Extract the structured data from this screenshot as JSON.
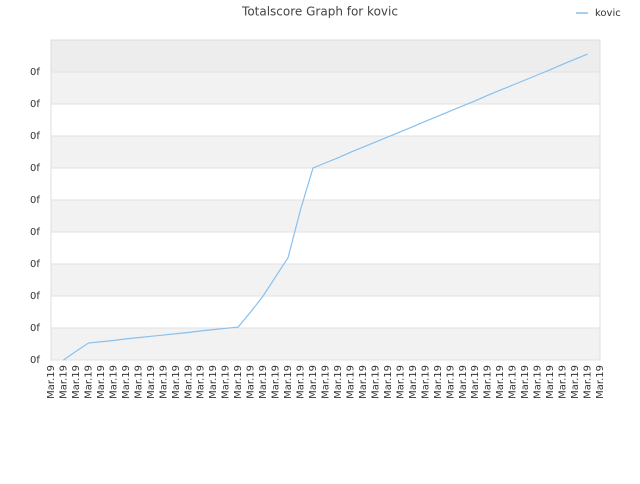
{
  "chart_data": {
    "type": "line",
    "title": "Totalscore Graph for kovic",
    "categories": [
      "Mar.19",
      "Mar.19",
      "Mar.19",
      "Mar.19",
      "Mar.19",
      "Mar.19",
      "Mar.19",
      "Mar.19",
      "Mar.19",
      "Mar.19",
      "Mar.19",
      "Mar.19",
      "Mar.19",
      "Mar.19",
      "Mar.19",
      "Mar.19",
      "Mar.19",
      "Mar.19",
      "Mar.19",
      "Mar.19",
      "Mar.19",
      "Mar.19",
      "Mar.19",
      "Mar.19",
      "Mar.19",
      "Mar.19",
      "Mar.19",
      "Mar.19",
      "Mar.19",
      "Mar.19",
      "Mar.19",
      "Mar.19",
      "Mar.19",
      "Mar.19",
      "Mar.19",
      "Mar.19",
      "Mar.19",
      "Mar.19",
      "Mar.19",
      "Mar.19",
      "Mar.19",
      "Mar.19",
      "Mar.19",
      "Mar.19",
      "Mar.19"
    ],
    "series": [
      {
        "name": "kovic",
        "color": "#88c0ee",
        "values": [
          null,
          0,
          0.27,
          0.53,
          0.57,
          0.61,
          0.66,
          0.7,
          0.74,
          0.78,
          0.82,
          0.86,
          0.91,
          0.95,
          0.99,
          1.03,
          1.5,
          2.0,
          2.6,
          3.2,
          4.7,
          6.0,
          6.16,
          6.32,
          6.49,
          6.65,
          6.81,
          6.97,
          7.13,
          7.29,
          7.46,
          7.62,
          7.78,
          7.94,
          8.1,
          8.27,
          8.43,
          8.59,
          8.75,
          8.91,
          9.07,
          9.24,
          9.4,
          9.56,
          null
        ]
      }
    ],
    "ylim": [
      0,
      10
    ],
    "yticks": [
      {
        "value": 0,
        "label": "0f"
      },
      {
        "value": 1,
        "label": "0f"
      },
      {
        "value": 2,
        "label": "0f"
      },
      {
        "value": 3,
        "label": "0f"
      },
      {
        "value": 4,
        "label": "0f"
      },
      {
        "value": 5,
        "label": "0f"
      },
      {
        "value": 6,
        "label": "0f"
      },
      {
        "value": 7,
        "label": "0f"
      },
      {
        "value": 8,
        "label": "0f"
      },
      {
        "value": 9,
        "label": "0f"
      }
    ],
    "grid": true,
    "legend": "top-right"
  }
}
